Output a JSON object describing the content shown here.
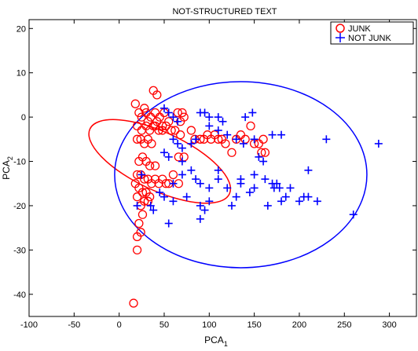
{
  "chart_data": {
    "type": "scatter",
    "title": "NOT-STRUCTURED TEXT",
    "xlabel": {
      "main": "PCA",
      "sub": "1"
    },
    "ylabel": {
      "main": "PCA",
      "sub": "2"
    },
    "xlim": [
      -100,
      330
    ],
    "ylim": [
      -45,
      22
    ],
    "xticks": [
      -100,
      -50,
      0,
      50,
      100,
      150,
      200,
      250,
      300
    ],
    "yticks": [
      -40,
      -30,
      -20,
      -10,
      0,
      10,
      20
    ],
    "grid": false,
    "legend_position": "top-right",
    "series": [
      {
        "name": "JUNK",
        "marker": "circle",
        "color": "#ff0000",
        "points": [
          [
            18,
            3
          ],
          [
            22,
            1
          ],
          [
            25,
            0
          ],
          [
            28,
            2
          ],
          [
            30,
            1
          ],
          [
            32,
            -1
          ],
          [
            35,
            0
          ],
          [
            38,
            -2
          ],
          [
            40,
            1
          ],
          [
            42,
            -1
          ],
          [
            45,
            0
          ],
          [
            48,
            -2
          ],
          [
            50,
            1
          ],
          [
            55,
            -1
          ],
          [
            38,
            6
          ],
          [
            42,
            5
          ],
          [
            20,
            -2
          ],
          [
            25,
            -3
          ],
          [
            30,
            -2
          ],
          [
            34,
            -3
          ],
          [
            40,
            -2
          ],
          [
            44,
            -3
          ],
          [
            48,
            -3
          ],
          [
            52,
            -2
          ],
          [
            58,
            -3
          ],
          [
            62,
            -3
          ],
          [
            65,
            1
          ],
          [
            70,
            1
          ],
          [
            68,
            -1
          ],
          [
            72,
            0
          ],
          [
            20,
            -5
          ],
          [
            24,
            -5
          ],
          [
            28,
            -6
          ],
          [
            32,
            -5
          ],
          [
            36,
            -6
          ],
          [
            22,
            -10
          ],
          [
            26,
            -9
          ],
          [
            30,
            -10
          ],
          [
            34,
            -11
          ],
          [
            40,
            -11
          ],
          [
            20,
            -13
          ],
          [
            24,
            -13
          ],
          [
            28,
            -14
          ],
          [
            32,
            -14
          ],
          [
            36,
            -15
          ],
          [
            40,
            -14
          ],
          [
            44,
            -15
          ],
          [
            48,
            -14
          ],
          [
            52,
            -15
          ],
          [
            66,
            -15
          ],
          [
            18,
            -15
          ],
          [
            22,
            -16
          ],
          [
            26,
            -17
          ],
          [
            30,
            -17
          ],
          [
            34,
            -18
          ],
          [
            20,
            -18
          ],
          [
            24,
            -20
          ],
          [
            28,
            -19
          ],
          [
            32,
            -19
          ],
          [
            22,
            -24
          ],
          [
            26,
            -22
          ],
          [
            20,
            -27
          ],
          [
            24,
            -26
          ],
          [
            20,
            -30
          ],
          [
            16,
            -42
          ],
          [
            68,
            -4
          ],
          [
            72,
            -9
          ],
          [
            80,
            -3
          ],
          [
            84,
            -5
          ],
          [
            90,
            -5
          ],
          [
            94,
            -5
          ],
          [
            98,
            -4
          ],
          [
            102,
            -5
          ],
          [
            106,
            -4
          ],
          [
            110,
            -5
          ],
          [
            114,
            -5
          ],
          [
            118,
            -6
          ],
          [
            125,
            -8
          ],
          [
            130,
            -5
          ],
          [
            135,
            -4
          ],
          [
            140,
            -5
          ],
          [
            146,
            -2
          ],
          [
            150,
            -6
          ],
          [
            155,
            -6
          ],
          [
            160,
            -5
          ],
          [
            158,
            -8
          ],
          [
            162,
            -8
          ],
          [
            55,
            -15
          ],
          [
            60,
            -13
          ],
          [
            66,
            -9
          ]
        ]
      },
      {
        "name": "NOT JUNK",
        "marker": "plus",
        "color": "#0000ff",
        "points": [
          [
            50,
            2
          ],
          [
            55,
            1
          ],
          [
            60,
            0
          ],
          [
            65,
            -1
          ],
          [
            90,
            1
          ],
          [
            95,
            1
          ],
          [
            100,
            0
          ],
          [
            110,
            0
          ],
          [
            115,
            -1
          ],
          [
            140,
            0
          ],
          [
            148,
            1
          ],
          [
            60,
            -5
          ],
          [
            65,
            -6
          ],
          [
            70,
            -7
          ],
          [
            80,
            -6
          ],
          [
            85,
            -5
          ],
          [
            100,
            -2
          ],
          [
            110,
            -3
          ],
          [
            120,
            -4
          ],
          [
            130,
            -5
          ],
          [
            138,
            -6
          ],
          [
            150,
            -5
          ],
          [
            170,
            -4
          ],
          [
            180,
            -4
          ],
          [
            230,
            -5
          ],
          [
            288,
            -6
          ],
          [
            50,
            -8
          ],
          [
            55,
            -9
          ],
          [
            70,
            -10
          ],
          [
            80,
            -12
          ],
          [
            110,
            -12
          ],
          [
            135,
            -14
          ],
          [
            150,
            -16
          ],
          [
            155,
            -9
          ],
          [
            160,
            -10
          ],
          [
            190,
            -16
          ],
          [
            210,
            -12
          ],
          [
            60,
            -15
          ],
          [
            70,
            -13
          ],
          [
            85,
            -14
          ],
          [
            90,
            -15
          ],
          [
            100,
            -16
          ],
          [
            110,
            -14
          ],
          [
            120,
            -16
          ],
          [
            135,
            -15
          ],
          [
            145,
            -17
          ],
          [
            170,
            -15
          ],
          [
            172,
            -16
          ],
          [
            175,
            -15
          ],
          [
            178,
            -16
          ],
          [
            200,
            -19
          ],
          [
            205,
            -18
          ],
          [
            210,
            -18
          ],
          [
            220,
            -19
          ],
          [
            50,
            -18
          ],
          [
            60,
            -19
          ],
          [
            75,
            -18
          ],
          [
            90,
            -20
          ],
          [
            95,
            -21
          ],
          [
            100,
            -19
          ],
          [
            125,
            -20
          ],
          [
            130,
            -18
          ],
          [
            165,
            -20
          ],
          [
            180,
            -19
          ],
          [
            185,
            -18
          ],
          [
            35,
            -20
          ],
          [
            38,
            -21
          ],
          [
            45,
            -17
          ],
          [
            55,
            -24
          ],
          [
            260,
            -22
          ],
          [
            20,
            -20
          ],
          [
            25,
            -13
          ],
          [
            90,
            -23
          ],
          [
            150,
            -13
          ],
          [
            162,
            -14
          ]
        ]
      }
    ],
    "ellipses": [
      {
        "series": "JUNK",
        "color": "#ff0000",
        "cx": 45,
        "cy": -10,
        "rx": 62,
        "ry": 23,
        "rotation_deg": -65
      },
      {
        "series": "NOT JUNK",
        "color": "#0000ff",
        "cx": 135,
        "cy": -13,
        "rx": 140,
        "ry": 21
      }
    ]
  }
}
